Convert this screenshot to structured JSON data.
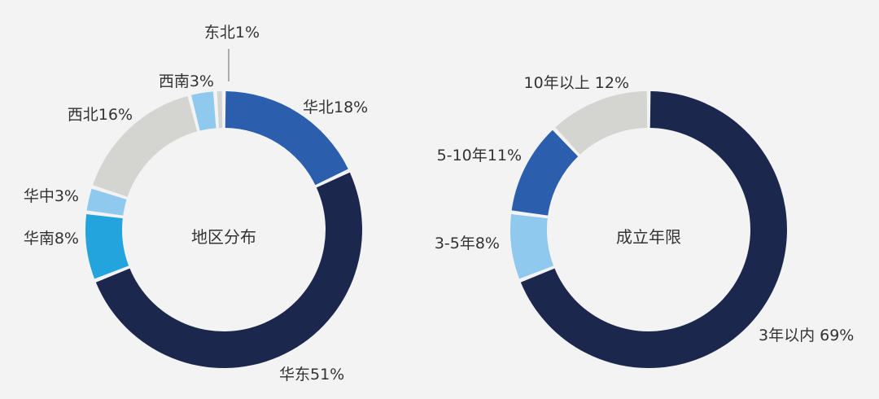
{
  "chart_data": [
    {
      "type": "pie",
      "title": "地区分布",
      "slices": [
        {
          "label": "华北18%",
          "value": 18,
          "color": "#2b5fad"
        },
        {
          "label": "华东51%",
          "value": 51,
          "color": "#1b274d"
        },
        {
          "label": "华南8%",
          "value": 8,
          "color": "#23a4dd"
        },
        {
          "label": "华中3%",
          "value": 3,
          "color": "#8fc9ee"
        },
        {
          "label": "西北16%",
          "value": 16,
          "color": "#d4d5d1"
        },
        {
          "label": "西南3%",
          "value": 3,
          "color": "#8fc9ee"
        },
        {
          "label": "东北1%",
          "value": 1,
          "color": "#d4d5d1"
        }
      ]
    },
    {
      "type": "pie",
      "title": "成立年限",
      "slices": [
        {
          "label": "3年以内 69%",
          "value": 69,
          "color": "#1b274d"
        },
        {
          "label": "3-5年8%",
          "value": 8,
          "color": "#8fc9ee"
        },
        {
          "label": "5-10年11%",
          "value": 11,
          "color": "#2b5fad"
        },
        {
          "label": "10年以上 12%",
          "value": 12,
          "color": "#d4d5d1"
        }
      ]
    }
  ]
}
